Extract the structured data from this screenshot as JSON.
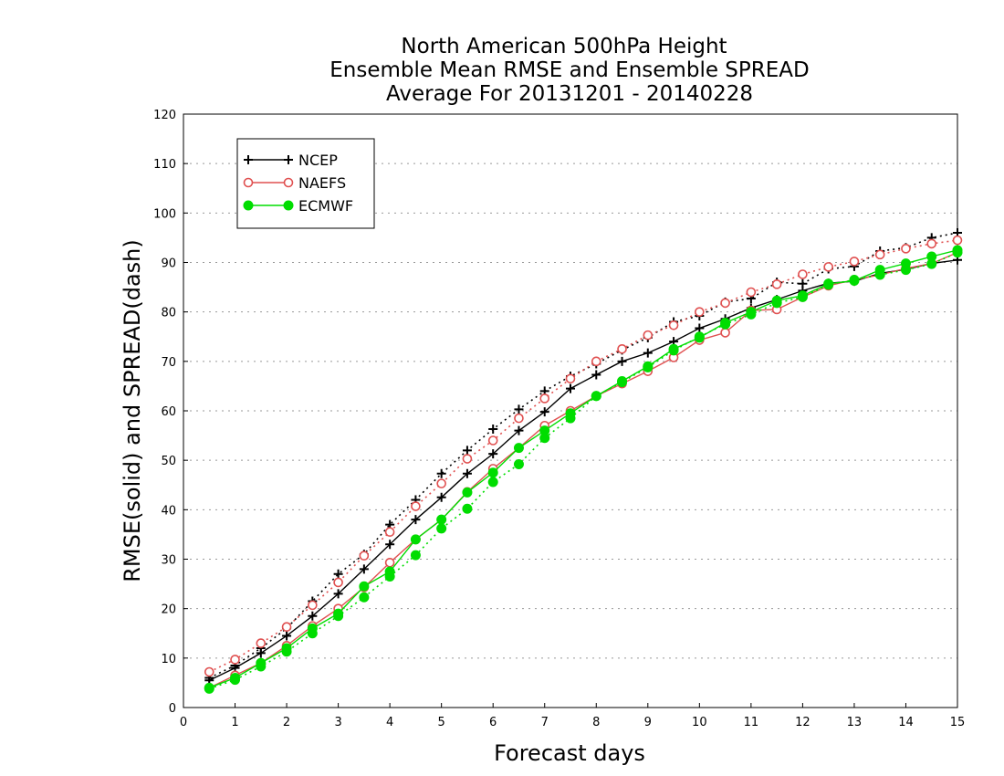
{
  "chart_data": {
    "type": "line",
    "title": [
      "North American 500hPa Height",
      "Ensemble Mean RMSE and Ensemble SPREAD",
      "Average For 20131201 - 20140228"
    ],
    "xlabel": "Forecast days",
    "ylabel": "RMSE(solid) and SPREAD(dash)",
    "xlim": [
      0,
      15
    ],
    "ylim": [
      0,
      120
    ],
    "xticks": [
      "0",
      "1",
      "2",
      "3",
      "4",
      "5",
      "6",
      "7",
      "8",
      "9",
      "10",
      "11",
      "12",
      "13",
      "14",
      "15"
    ],
    "yticks": [
      "0",
      "10",
      "20",
      "30",
      "40",
      "50",
      "60",
      "70",
      "80",
      "90",
      "100",
      "110",
      "120"
    ],
    "grid": "horizontal dotted",
    "legend_position": "top-left",
    "x": [
      0.5,
      1,
      1.5,
      2,
      2.5,
      3,
      3.5,
      4,
      4.5,
      5,
      5.5,
      6,
      6.5,
      7,
      7.5,
      8,
      8.5,
      9,
      9.5,
      10,
      10.5,
      11,
      11.5,
      12,
      12.5,
      13,
      13.5,
      14,
      14.5,
      15
    ],
    "series": [
      {
        "name": "NCEP",
        "color": "#000000",
        "marker": "plus",
        "rmse": [
          5.5,
          8,
          11,
          14.5,
          18.5,
          23,
          28,
          33,
          38,
          42.5,
          47.3,
          51.3,
          56,
          59.8,
          64.5,
          67.3,
          70,
          71.7,
          74,
          76.7,
          78.6,
          80.8,
          82.5,
          84.3,
          85.8,
          86.2,
          87.8,
          88.6,
          89.8,
          90.5
        ],
        "spread": [
          6,
          8.5,
          12,
          16,
          21.5,
          27,
          31,
          37,
          42,
          47.3,
          52,
          56.3,
          60.3,
          64,
          67,
          69.5,
          72.3,
          74.8,
          78,
          79.2,
          82,
          82.7,
          86,
          85.7,
          88.7,
          89.2,
          92.3,
          93,
          95,
          96
        ]
      },
      {
        "name": "NAEFS",
        "color": "#e05050",
        "marker": "circle-open",
        "rmse": [
          4,
          6.5,
          9,
          12.5,
          16.5,
          20,
          24.3,
          29.3,
          34,
          38,
          43.6,
          48.3,
          52.5,
          57,
          60,
          63,
          65.5,
          68,
          70.8,
          74.3,
          75.8,
          80.3,
          80.5,
          83,
          85.3,
          86.5,
          87.5,
          88.8,
          89.8,
          92
        ],
        "spread": [
          7.2,
          9.7,
          13,
          16.3,
          20.7,
          25.3,
          30.7,
          35.5,
          40.7,
          45.3,
          50.3,
          54,
          58.5,
          62.5,
          66.5,
          70,
          72.5,
          75.3,
          77.3,
          80,
          81.8,
          84,
          85.6,
          87.6,
          89.1,
          90.2,
          91.6,
          92.8,
          93.8,
          94.5
        ]
      },
      {
        "name": "ECMWF",
        "color": "#00dd00",
        "marker": "circle-filled",
        "rmse": [
          4,
          6,
          9,
          12,
          16,
          19,
          24.5,
          27.5,
          34,
          38,
          43.5,
          47.5,
          52.5,
          56,
          59.5,
          63,
          66,
          69,
          72.5,
          74.8,
          77.8,
          80,
          82.3,
          83.3,
          85.7,
          86.3,
          88.5,
          89.8,
          91.2,
          92.5
        ],
        "spread": [
          3.8,
          5.6,
          8.3,
          11.3,
          15,
          18.5,
          22.3,
          26.5,
          30.8,
          36.2,
          40.2,
          45.6,
          49.2,
          54.5,
          58.5,
          63,
          65.8,
          68.8,
          72.2,
          75,
          77.5,
          79.5,
          81.8,
          83,
          85.5,
          86.5,
          87.5,
          88.5,
          89.7,
          92
        ]
      }
    ]
  }
}
